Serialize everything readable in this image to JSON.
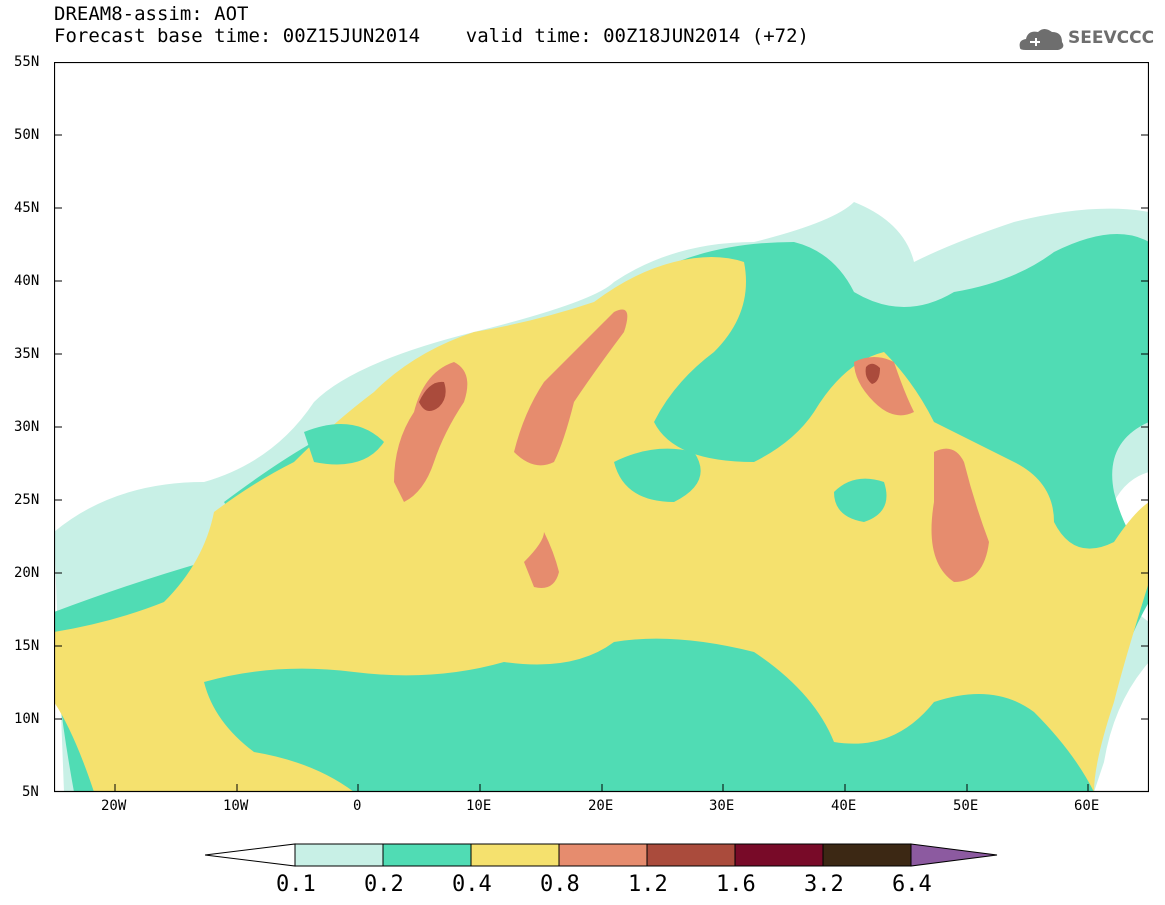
{
  "header": {
    "line1": "DREAM8-assim: AOT",
    "line2": "Forecast base time: 00Z15JUN2014    valid time: 00Z18JUN2014 (+72)"
  },
  "logo": {
    "text": "SEEVCCC",
    "icon": "cloud-logo-icon"
  },
  "map": {
    "lat_labels": [
      "55N",
      "50N",
      "45N",
      "40N",
      "35N",
      "30N",
      "25N",
      "20N",
      "15N",
      "10N",
      "5N"
    ],
    "lon_labels": [
      "20W",
      "10W",
      "0",
      "10E",
      "20E",
      "30E",
      "40E",
      "50E",
      "60E"
    ],
    "lat_range": [
      5,
      55
    ],
    "lon_range": [
      -25,
      65
    ]
  },
  "legend": {
    "levels": [
      "0.1",
      "0.2",
      "0.4",
      "0.8",
      "1.2",
      "1.6",
      "3.2",
      "6.4"
    ],
    "colors": [
      "#ffffff",
      "#c8f0e6",
      "#50dcb4",
      "#f5e16e",
      "#e68c6e",
      "#aa4b3c",
      "#780a28",
      "#3c2814",
      "#8c5aa0"
    ]
  },
  "colors": {
    "c1": "#c8f0e6",
    "c2": "#50dcb4",
    "c3": "#f5e16e",
    "c4": "#e68c6e",
    "c5": "#aa4b3c"
  }
}
